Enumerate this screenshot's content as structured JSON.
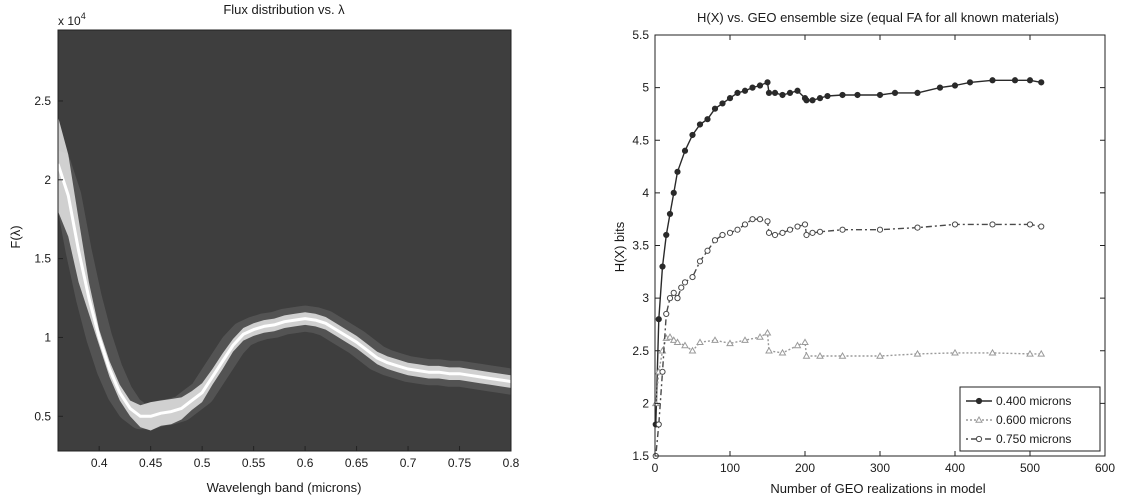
{
  "chart_data": [
    {
      "type": "heatmap",
      "title": "Flux distribution vs. λ",
      "xlabel": "Wavelengh band (microns)",
      "ylabel": "F(λ)",
      "y_exponent_label": "x 10",
      "y_exponent": "4",
      "xlim": [
        0.36,
        0.8
      ],
      "ylim": [
        2800,
        29500
      ],
      "xticks": [
        0.4,
        0.45,
        0.5,
        0.55,
        0.6,
        0.65,
        0.7,
        0.75,
        0.8
      ],
      "xtick_labels": [
        "0.4",
        "0.45",
        "0.5",
        "0.55",
        "0.6",
        "0.65",
        "0.7",
        "0.75",
        "0.8"
      ],
      "yticks": [
        5000,
        10000,
        15000,
        20000,
        25000
      ],
      "ytick_labels": [
        "0.5",
        "1",
        "1.5",
        "2",
        "2.5"
      ],
      "background_color": "#3e3e3e",
      "band_color": "#e6e6e6",
      "band": {
        "x": [
          0.36,
          0.37,
          0.38,
          0.39,
          0.4,
          0.41,
          0.42,
          0.43,
          0.44,
          0.45,
          0.46,
          0.47,
          0.48,
          0.49,
          0.5,
          0.51,
          0.52,
          0.53,
          0.54,
          0.55,
          0.56,
          0.57,
          0.58,
          0.59,
          0.6,
          0.61,
          0.62,
          0.63,
          0.64,
          0.65,
          0.66,
          0.67,
          0.68,
          0.69,
          0.7,
          0.71,
          0.72,
          0.73,
          0.74,
          0.75,
          0.76,
          0.77,
          0.78,
          0.79,
          0.8
        ],
        "y": [
          21000,
          19000,
          15500,
          12500,
          10000,
          8000,
          6500,
          5500,
          5000,
          5000,
          5200,
          5300,
          5500,
          6000,
          6500,
          7500,
          8500,
          9500,
          10200,
          10500,
          10700,
          10800,
          11000,
          11100,
          11200,
          11100,
          10900,
          10500,
          10100,
          9700,
          9200,
          8700,
          8400,
          8200,
          8000,
          7900,
          7800,
          7800,
          7700,
          7700,
          7600,
          7500,
          7400,
          7300,
          7200
        ],
        "spread": [
          3000,
          2600,
          2000,
          1000,
          500,
          500,
          500,
          500,
          700,
          900,
          800,
          800,
          700,
          600,
          600,
          500,
          500,
          400,
          400,
          400,
          400,
          400,
          400,
          400,
          400,
          400,
          400,
          400,
          400,
          400,
          400,
          400,
          400,
          400,
          400,
          400,
          400,
          400,
          400,
          400,
          400,
          400,
          400,
          400,
          400
        ]
      }
    },
    {
      "type": "line",
      "title": "H(X) vs. GEO ensemble size (equal FA for all known materials)",
      "xlabel": "Number of GEO realizations in model",
      "ylabel": "H(X) bits",
      "xlim": [
        0,
        600
      ],
      "ylim": [
        1.5,
        5.5
      ],
      "xticks": [
        0,
        100,
        200,
        300,
        400,
        500,
        600
      ],
      "yticks": [
        1.5,
        2,
        2.5,
        3,
        3.5,
        4,
        4.5,
        5,
        5.5
      ],
      "xtick_labels": [
        "0",
        "100",
        "200",
        "300",
        "400",
        "500",
        "600"
      ],
      "ytick_labels": [
        "1.5",
        "2",
        "2.5",
        "3",
        "3.5",
        "4",
        "4.5",
        "5",
        "5.5"
      ],
      "legend_position": "bottom-right",
      "series": [
        {
          "name": "0.400 microns",
          "color": "#2a2a2a",
          "dash": "",
          "marker": "filled-circle",
          "x": [
            1,
            5,
            10,
            15,
            20,
            25,
            30,
            40,
            50,
            60,
            70,
            80,
            90,
            100,
            110,
            120,
            130,
            140,
            150,
            152,
            160,
            170,
            180,
            190,
            200,
            202,
            210,
            220,
            230,
            250,
            270,
            300,
            320,
            350,
            380,
            400,
            420,
            450,
            480,
            500,
            515
          ],
          "y": [
            1.8,
            2.8,
            3.3,
            3.6,
            3.8,
            4.0,
            4.2,
            4.4,
            4.55,
            4.65,
            4.7,
            4.8,
            4.85,
            4.9,
            4.95,
            4.97,
            5.0,
            5.02,
            5.05,
            4.95,
            4.95,
            4.93,
            4.95,
            4.97,
            4.9,
            4.88,
            4.88,
            4.9,
            4.92,
            4.93,
            4.93,
            4.93,
            4.95,
            4.95,
            5.0,
            5.02,
            5.05,
            5.07,
            5.07,
            5.07,
            5.05
          ]
        },
        {
          "name": "0.600 microns",
          "color": "#9a9a9a",
          "dash": "2,2",
          "marker": "open-triangle",
          "x": [
            1,
            5,
            10,
            15,
            20,
            25,
            30,
            40,
            50,
            60,
            80,
            100,
            120,
            140,
            150,
            152,
            170,
            190,
            200,
            202,
            220,
            250,
            300,
            350,
            400,
            450,
            500,
            515
          ],
          "y": [
            2.0,
            2.3,
            2.5,
            2.62,
            2.63,
            2.6,
            2.58,
            2.55,
            2.5,
            2.58,
            2.6,
            2.57,
            2.6,
            2.63,
            2.67,
            2.5,
            2.48,
            2.55,
            2.58,
            2.45,
            2.45,
            2.45,
            2.45,
            2.47,
            2.48,
            2.48,
            2.47,
            2.47
          ]
        },
        {
          "name": "0.750 microns",
          "color": "#4a4a4a",
          "dash": "2,3,6,3",
          "marker": "open-circle",
          "x": [
            1,
            5,
            10,
            15,
            20,
            25,
            30,
            35,
            40,
            50,
            60,
            70,
            80,
            90,
            100,
            110,
            120,
            130,
            140,
            150,
            152,
            160,
            170,
            180,
            190,
            200,
            202,
            210,
            220,
            250,
            300,
            350,
            400,
            450,
            500,
            515
          ],
          "y": [
            1.5,
            1.8,
            2.3,
            2.85,
            3.0,
            3.05,
            3.0,
            3.1,
            3.15,
            3.2,
            3.35,
            3.45,
            3.55,
            3.6,
            3.62,
            3.65,
            3.7,
            3.75,
            3.75,
            3.73,
            3.62,
            3.6,
            3.62,
            3.65,
            3.68,
            3.7,
            3.6,
            3.62,
            3.63,
            3.65,
            3.65,
            3.67,
            3.7,
            3.7,
            3.7,
            3.68
          ]
        }
      ]
    }
  ]
}
